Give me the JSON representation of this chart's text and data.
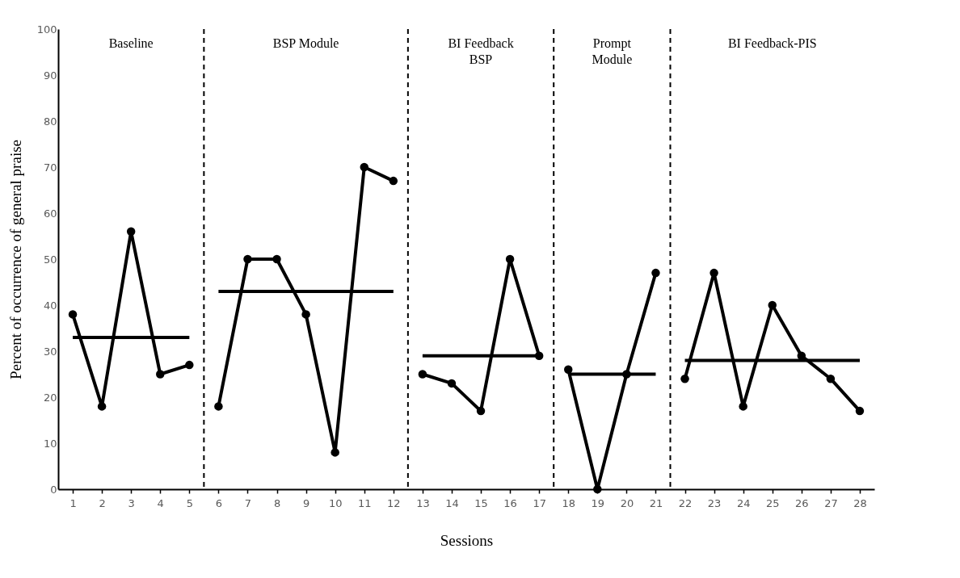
{
  "chart_data": {
    "type": "line",
    "xlabel": "Sessions",
    "ylabel": "Percent of occurrence of general praise",
    "xlim": [
      0.5,
      28.5
    ],
    "xticks": [
      1,
      2,
      3,
      4,
      5,
      6,
      7,
      8,
      9,
      10,
      11,
      12,
      13,
      14,
      15,
      16,
      17,
      18,
      19,
      20,
      21,
      22,
      23,
      24,
      25,
      26,
      27,
      28
    ],
    "ylim": [
      0,
      100
    ],
    "yticks": [
      0,
      10,
      20,
      30,
      40,
      50,
      60,
      70,
      80,
      90,
      100
    ],
    "grid": false,
    "legend": false,
    "series": [
      {
        "color": "#000000",
        "marker": "circle",
        "x": [
          1,
          2,
          3,
          4,
          5
        ],
        "values": [
          38,
          18,
          56,
          25,
          27
        ]
      },
      {
        "color": "#000000",
        "marker": "circle",
        "x": [
          6,
          7,
          8,
          9,
          10,
          11,
          12
        ],
        "values": [
          18,
          50,
          50,
          38,
          8,
          70,
          67
        ]
      },
      {
        "color": "#000000",
        "marker": "circle",
        "x": [
          13,
          14,
          15,
          16,
          17
        ],
        "values": [
          25,
          23,
          17,
          50,
          29
        ]
      },
      {
        "color": "#000000",
        "marker": "circle",
        "x": [
          18,
          19,
          20,
          21
        ],
        "values": [
          26,
          0,
          25,
          47
        ]
      },
      {
        "color": "#000000",
        "marker": "circle",
        "x": [
          22,
          23,
          24,
          25,
          26,
          27,
          28
        ],
        "values": [
          24,
          47,
          18,
          40,
          29,
          24,
          17
        ]
      },
      {
        "color": "#000000",
        "marker": "none",
        "x": [
          1,
          5
        ],
        "values": [
          33,
          33
        ]
      },
      {
        "color": "#000000",
        "marker": "none",
        "x": [
          6,
          12
        ],
        "values": [
          43,
          43
        ]
      },
      {
        "color": "#000000",
        "marker": "none",
        "x": [
          13,
          17
        ],
        "values": [
          29,
          29
        ]
      },
      {
        "color": "#000000",
        "marker": "none",
        "x": [
          18,
          21
        ],
        "values": [
          25,
          25
        ]
      },
      {
        "color": "#000000",
        "marker": "none",
        "x": [
          22,
          28
        ],
        "values": [
          28,
          28
        ]
      }
    ],
    "ref_lines": [
      {
        "axis": "x",
        "value": 5.5,
        "color": "#000000",
        "line_style": "dashed"
      },
      {
        "axis": "x",
        "value": 12.5,
        "color": "#000000",
        "line_style": "dashed"
      },
      {
        "axis": "x",
        "value": 17.5,
        "color": "#000000",
        "line_style": "dashed"
      },
      {
        "axis": "x",
        "value": 21.5,
        "color": "#000000",
        "line_style": "dashed"
      }
    ],
    "annotations": [
      "Baseline",
      "BSP Module",
      "BI Feedback\nBSP",
      "Prompt\nModule",
      "BI Feedback-PIS"
    ]
  }
}
